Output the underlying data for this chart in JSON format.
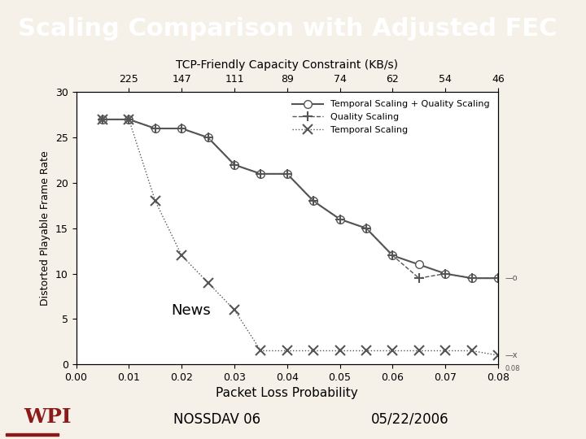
{
  "title": "Scaling Comparison with Adjusted FEC",
  "title_bg": "#8B1A1A",
  "title_fg": "#FFFFFF",
  "footer_bg": "#C8C8C8",
  "nossdav_text": "NOSSDAV 06",
  "date_text": "05/22/2006",
  "chart_bg": "#F5F0E8",
  "plot_bg": "#FFFFFF",
  "xlabel": "Packet Loss Probability",
  "ylabel": "Distorted Playable Frame Rate",
  "top_xlabel": "TCP-Friendly Capacity Constraint (KB/s)",
  "top_tick_positions": [
    0.01,
    0.02,
    0.03,
    0.04,
    0.05,
    0.06,
    0.07,
    0.08
  ],
  "top_xlabels": [
    "225",
    "147",
    "111",
    "89",
    "74",
    "62",
    "54",
    "46"
  ],
  "annotation": "News",
  "xlim": [
    0,
    0.08
  ],
  "ylim": [
    0,
    30
  ],
  "xticks": [
    0,
    0.01,
    0.02,
    0.03,
    0.04,
    0.05,
    0.06,
    0.07,
    0.08
  ],
  "yticks": [
    0,
    5,
    10,
    15,
    20,
    25,
    30
  ],
  "series1_label": "Temporal Scaling + Quality Scaling",
  "series1_color": "#555555",
  "series2_label": "Quality Scaling",
  "series2_color": "#555555",
  "series3_label": "Temporal Scaling",
  "series3_color": "#555555",
  "ts_qs_x": [
    0.005,
    0.01,
    0.015,
    0.02,
    0.025,
    0.03,
    0.035,
    0.04,
    0.045,
    0.05,
    0.055,
    0.06,
    0.065,
    0.07,
    0.075,
    0.08
  ],
  "ts_qs_y": [
    27.0,
    27.0,
    26.0,
    26.0,
    25.0,
    22.0,
    21.0,
    21.0,
    18.0,
    16.0,
    15.0,
    12.0,
    11.0,
    10.0,
    9.5,
    9.5
  ],
  "qs_x": [
    0.005,
    0.01,
    0.015,
    0.02,
    0.025,
    0.03,
    0.035,
    0.04,
    0.045,
    0.05,
    0.055,
    0.06,
    0.065,
    0.07,
    0.075,
    0.08
  ],
  "qs_y": [
    27.0,
    27.0,
    26.0,
    26.0,
    25.0,
    22.0,
    21.0,
    21.0,
    18.0,
    16.0,
    15.0,
    12.0,
    9.5,
    10.0,
    9.5,
    9.5
  ],
  "ts_x": [
    0.005,
    0.01,
    0.015,
    0.02,
    0.025,
    0.03,
    0.035,
    0.04,
    0.045,
    0.05,
    0.055,
    0.06,
    0.065,
    0.07,
    0.075,
    0.08
  ],
  "ts_y": [
    27.0,
    27.0,
    18.0,
    12.0,
    9.0,
    6.0,
    1.5,
    1.5,
    1.5,
    1.5,
    1.5,
    1.5,
    1.5,
    1.5,
    1.5,
    1.0
  ],
  "right_annotations": [
    {
      "y": 9.5,
      "text": "o",
      "fontsize": 8
    },
    {
      "y": 1.0,
      "text": "x",
      "fontsize": 8
    },
    {
      "y": -1.5,
      "text": "0.08",
      "fontsize": 7
    }
  ]
}
